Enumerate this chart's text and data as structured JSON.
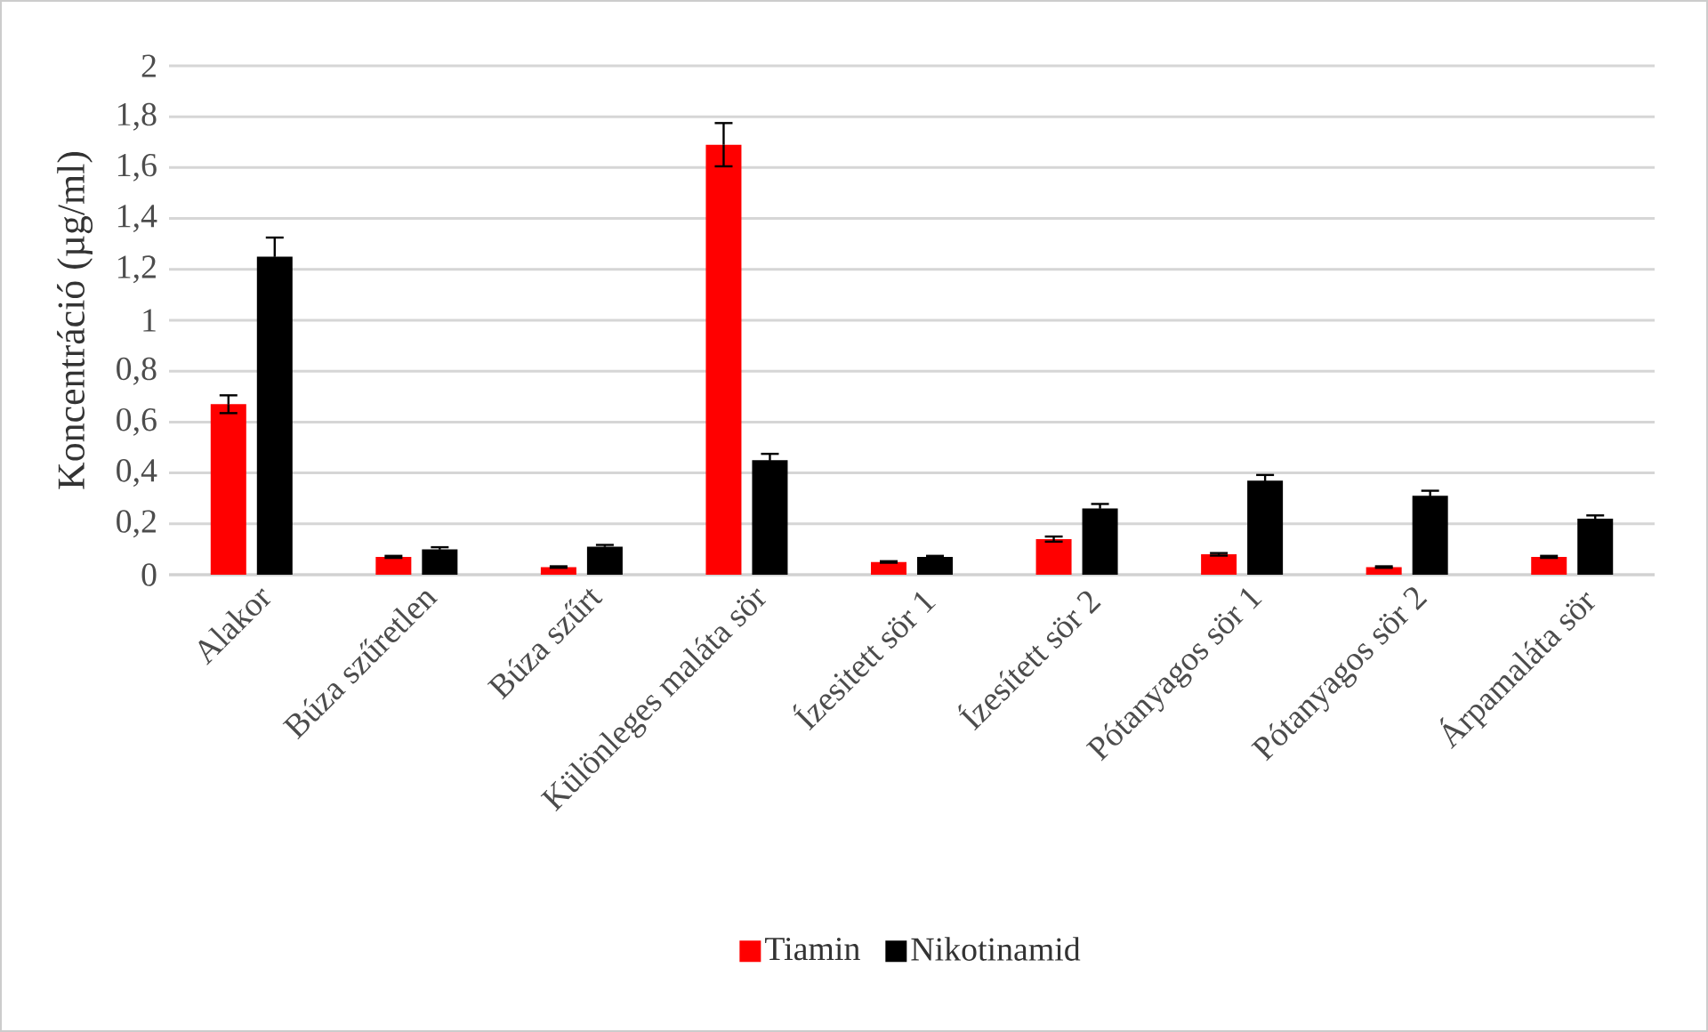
{
  "chart_data": {
    "type": "bar",
    "ylabel": "Koncentráció (µg/ml)",
    "categories": [
      "Alakor",
      "Búza szűretlen",
      "Búza szűrt",
      "Különleges maláta sör",
      "Ízesitett sör 1",
      "Ízesített sör 2",
      "Pótanyagos sör 1",
      "Pótanyagos sör 2",
      "Árpamaláta sör"
    ],
    "series": [
      {
        "name": "Tiamin",
        "color": "#ff0000",
        "values": [
          0.67,
          0.07,
          0.03,
          1.69,
          0.05,
          0.14,
          0.08,
          0.03,
          0.07
        ],
        "errors": [
          0.035,
          0.004,
          0.003,
          0.085,
          0.003,
          0.01,
          0.005,
          0.003,
          0.004
        ]
      },
      {
        "name": "Nikotinamid",
        "color": "#000000",
        "values": [
          1.25,
          0.1,
          0.11,
          0.45,
          0.07,
          0.26,
          0.37,
          0.31,
          0.22
        ],
        "errors": [
          0.075,
          0.008,
          0.007,
          0.025,
          0.004,
          0.018,
          0.022,
          0.02,
          0.013
        ]
      }
    ],
    "ylim": [
      0,
      2
    ],
    "yticks": [
      {
        "value": 0,
        "label": "0"
      },
      {
        "value": 0.2,
        "label": "0,2"
      },
      {
        "value": 0.4,
        "label": "0,4"
      },
      {
        "value": 0.6,
        "label": "0,6"
      },
      {
        "value": 0.8,
        "label": "0,8"
      },
      {
        "value": 1,
        "label": "1"
      },
      {
        "value": 1.2,
        "label": "1,2"
      },
      {
        "value": 1.4,
        "label": "1,4"
      },
      {
        "value": 1.6,
        "label": "1,6"
      },
      {
        "value": 1.8,
        "label": "1,8"
      },
      {
        "value": 2,
        "label": "2"
      }
    ],
    "grid": "y",
    "legend": "bottom"
  }
}
